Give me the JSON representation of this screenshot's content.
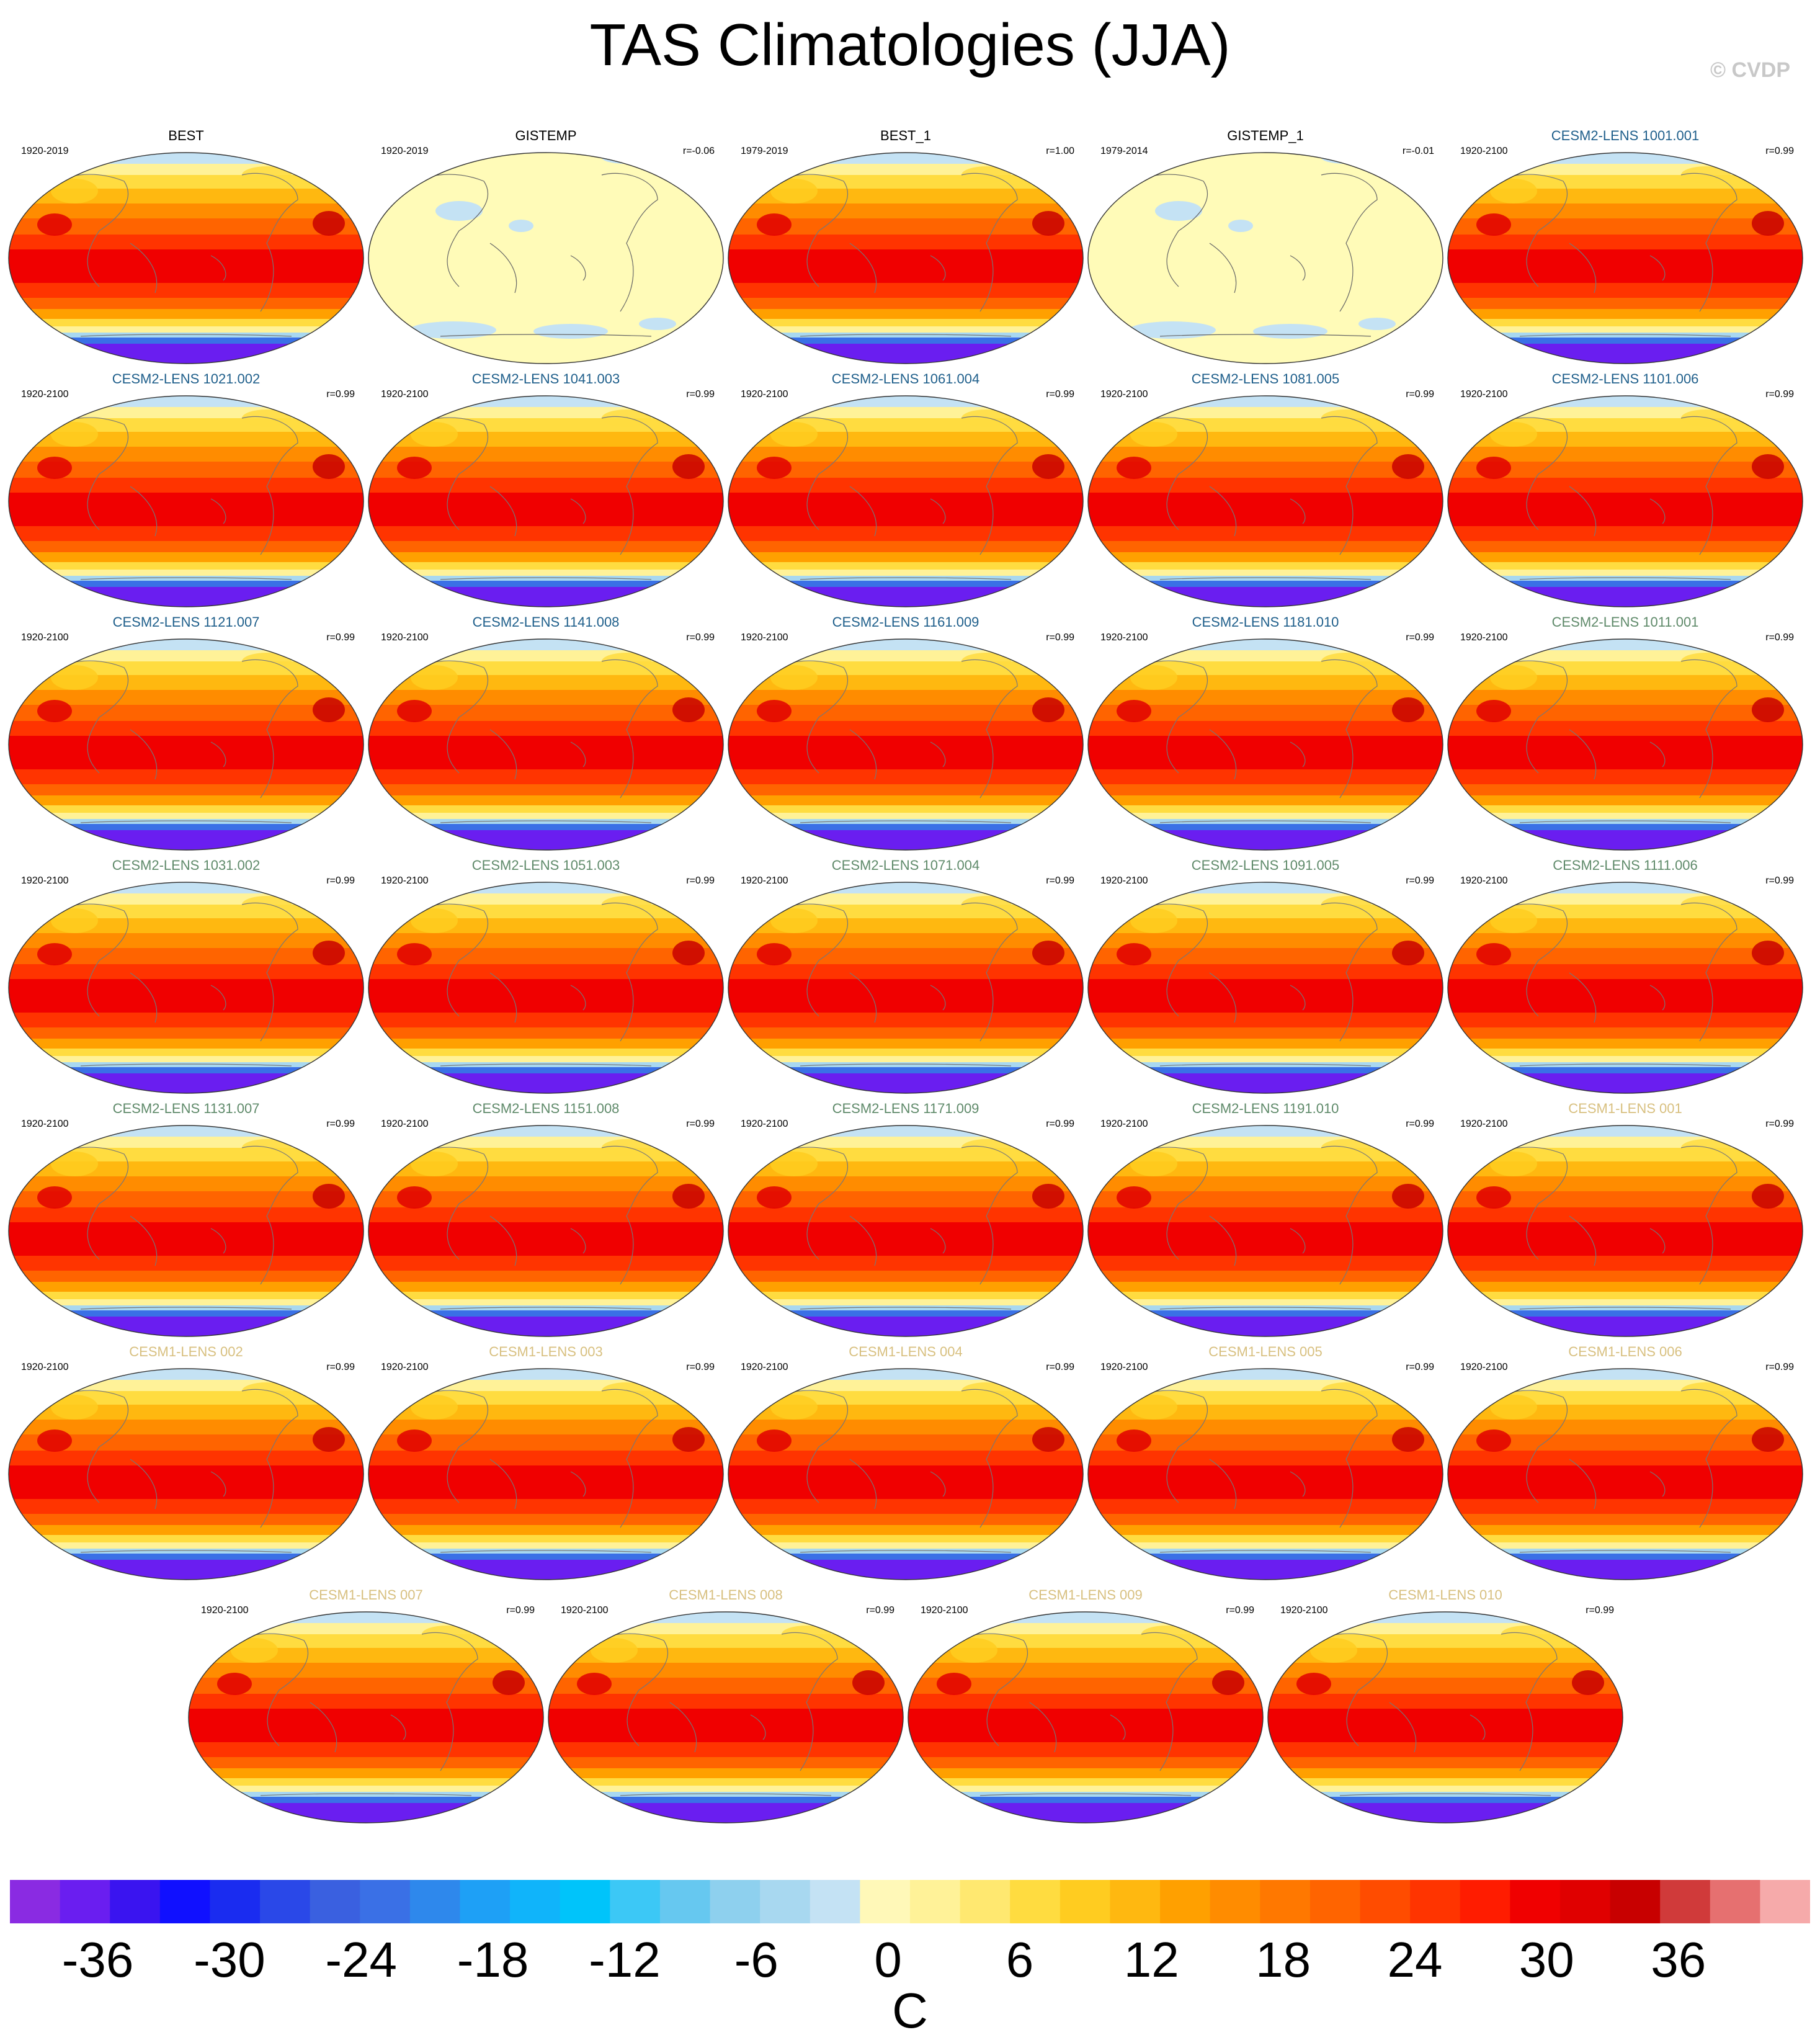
{
  "figure": {
    "title": "TAS Climatologies (JJA)",
    "copyright": "© CVDP"
  },
  "panels": [
    {
      "name": "BEST",
      "period": "1920-2019",
      "corr": "",
      "color": "#000000",
      "field": "full"
    },
    {
      "name": "GISTEMP",
      "period": "1920-2019",
      "corr": "r=-0.06",
      "color": "#000000",
      "field": "anomaly"
    },
    {
      "name": "BEST_1",
      "period": "1979-2019",
      "corr": "r=1.00",
      "color": "#000000",
      "field": "full"
    },
    {
      "name": "GISTEMP_1",
      "period": "1979-2014",
      "corr": "r=-0.01",
      "color": "#000000",
      "field": "anomaly"
    },
    {
      "name": "CESM2-LENS 1001.001",
      "period": "1920-2100",
      "corr": "r=0.99",
      "color": "#1f5f8b",
      "field": "full"
    },
    {
      "name": "CESM2-LENS 1021.002",
      "period": "1920-2100",
      "corr": "r=0.99",
      "color": "#1f5f8b",
      "field": "full"
    },
    {
      "name": "CESM2-LENS 1041.003",
      "period": "1920-2100",
      "corr": "r=0.99",
      "color": "#1f5f8b",
      "field": "full"
    },
    {
      "name": "CESM2-LENS 1061.004",
      "period": "1920-2100",
      "corr": "r=0.99",
      "color": "#1f5f8b",
      "field": "full"
    },
    {
      "name": "CESM2-LENS 1081.005",
      "period": "1920-2100",
      "corr": "r=0.99",
      "color": "#1f5f8b",
      "field": "full"
    },
    {
      "name": "CESM2-LENS 1101.006",
      "period": "1920-2100",
      "corr": "r=0.99",
      "color": "#1f5f8b",
      "field": "full"
    },
    {
      "name": "CESM2-LENS 1121.007",
      "period": "1920-2100",
      "corr": "r=0.99",
      "color": "#1f5f8b",
      "field": "full"
    },
    {
      "name": "CESM2-LENS 1141.008",
      "period": "1920-2100",
      "corr": "r=0.99",
      "color": "#1f5f8b",
      "field": "full"
    },
    {
      "name": "CESM2-LENS 1161.009",
      "period": "1920-2100",
      "corr": "r=0.99",
      "color": "#1f5f8b",
      "field": "full"
    },
    {
      "name": "CESM2-LENS 1181.010",
      "period": "1920-2100",
      "corr": "r=0.99",
      "color": "#1f5f8b",
      "field": "full"
    },
    {
      "name": "CESM2-LENS 1011.001",
      "period": "1920-2100",
      "corr": "r=0.99",
      "color": "#5f8a6a",
      "field": "full"
    },
    {
      "name": "CESM2-LENS 1031.002",
      "period": "1920-2100",
      "corr": "r=0.99",
      "color": "#5f8a6a",
      "field": "full"
    },
    {
      "name": "CESM2-LENS 1051.003",
      "period": "1920-2100",
      "corr": "r=0.99",
      "color": "#5f8a6a",
      "field": "full"
    },
    {
      "name": "CESM2-LENS 1071.004",
      "period": "1920-2100",
      "corr": "r=0.99",
      "color": "#5f8a6a",
      "field": "full"
    },
    {
      "name": "CESM2-LENS 1091.005",
      "period": "1920-2100",
      "corr": "r=0.99",
      "color": "#5f8a6a",
      "field": "full"
    },
    {
      "name": "CESM2-LENS 1111.006",
      "period": "1920-2100",
      "corr": "r=0.99",
      "color": "#5f8a6a",
      "field": "full"
    },
    {
      "name": "CESM2-LENS 1131.007",
      "period": "1920-2100",
      "corr": "r=0.99",
      "color": "#5f8a6a",
      "field": "full"
    },
    {
      "name": "CESM2-LENS 1151.008",
      "period": "1920-2100",
      "corr": "r=0.99",
      "color": "#5f8a6a",
      "field": "full"
    },
    {
      "name": "CESM2-LENS 1171.009",
      "period": "1920-2100",
      "corr": "r=0.99",
      "color": "#5f8a6a",
      "field": "full"
    },
    {
      "name": "CESM2-LENS 1191.010",
      "period": "1920-2100",
      "corr": "r=0.99",
      "color": "#5f8a6a",
      "field": "full"
    },
    {
      "name": "CESM1-LENS 001",
      "period": "1920-2100",
      "corr": "r=0.99",
      "color": "#d8c080",
      "field": "full"
    },
    {
      "name": "CESM1-LENS 002",
      "period": "1920-2100",
      "corr": "r=0.99",
      "color": "#d8c080",
      "field": "full"
    },
    {
      "name": "CESM1-LENS 003",
      "period": "1920-2100",
      "corr": "r=0.99",
      "color": "#d8c080",
      "field": "full"
    },
    {
      "name": "CESM1-LENS 004",
      "period": "1920-2100",
      "corr": "r=0.99",
      "color": "#d8c080",
      "field": "full"
    },
    {
      "name": "CESM1-LENS 005",
      "period": "1920-2100",
      "corr": "r=0.99",
      "color": "#d8c080",
      "field": "full"
    },
    {
      "name": "CESM1-LENS 006",
      "period": "1920-2100",
      "corr": "r=0.99",
      "color": "#d8c080",
      "field": "full"
    },
    {
      "name": "CESM1-LENS 007",
      "period": "1920-2100",
      "corr": "r=0.99",
      "color": "#d8c080",
      "field": "full"
    },
    {
      "name": "CESM1-LENS 008",
      "period": "1920-2100",
      "corr": "r=0.99",
      "color": "#d8c080",
      "field": "full"
    },
    {
      "name": "CESM1-LENS 009",
      "period": "1920-2100",
      "corr": "r=0.99",
      "color": "#d8c080",
      "field": "full"
    },
    {
      "name": "CESM1-LENS 010",
      "period": "1920-2100",
      "corr": "r=0.99",
      "color": "#d8c080",
      "field": "full"
    }
  ],
  "colorbar": {
    "colors": [
      "#8a2be2",
      "#6a1ef0",
      "#3a14f0",
      "#1010ff",
      "#1a2cf0",
      "#2a48e8",
      "#3a60e0",
      "#3a70e6",
      "#2e88ec",
      "#1ea0f6",
      "#10b4fa",
      "#00c4fa",
      "#3cc8f6",
      "#66c8f0",
      "#8ed0ee",
      "#a8d8f0",
      "#c4e2f4",
      "#fff8b8",
      "#fff298",
      "#ffe870",
      "#ffdc40",
      "#ffcc20",
      "#ffb810",
      "#ffa000",
      "#ff8c00",
      "#ff7800",
      "#ff6400",
      "#ff4c00",
      "#ff3400",
      "#ff1c00",
      "#f00000",
      "#e00000",
      "#c80000",
      "#d03a3a",
      "#e67070",
      "#f6aaaa"
    ],
    "tick_labels": [
      "-36",
      "-30",
      "-24",
      "-18",
      "-12",
      "-6",
      "0",
      "6",
      "12",
      "18",
      "24",
      "30",
      "36"
    ],
    "tick_values": [
      -36,
      -30,
      -24,
      -18,
      -12,
      -6,
      0,
      6,
      12,
      18,
      24,
      30,
      36
    ],
    "min": -40,
    "max": 42,
    "units": "C"
  }
}
